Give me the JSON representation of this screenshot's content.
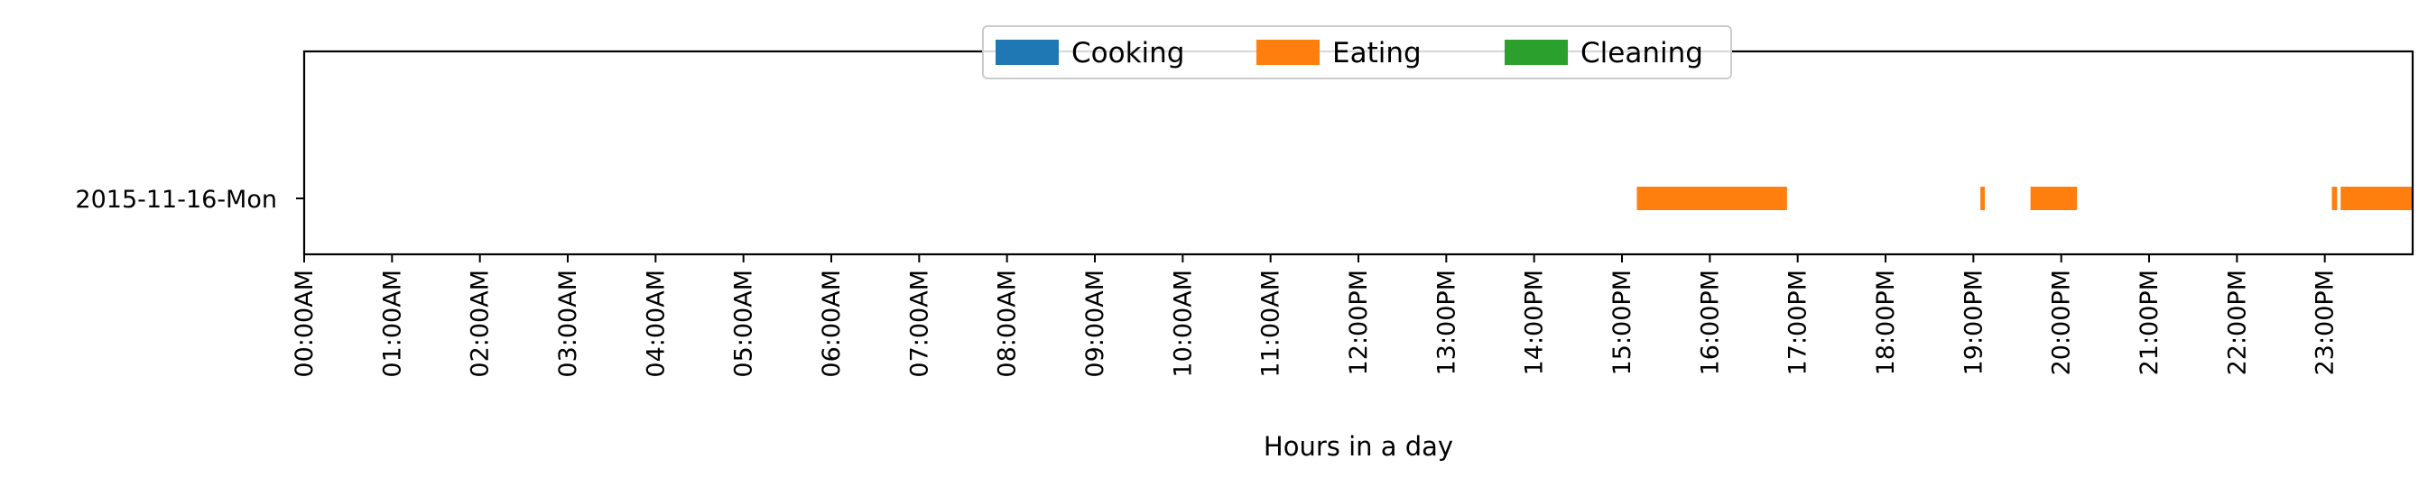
{
  "chart_data": {
    "type": "bar",
    "orientation": "horizontal-timeline",
    "title": "",
    "xlabel": "Hours in a day",
    "ylabel": "",
    "xlim": [
      0,
      24
    ],
    "grid": false,
    "legend_placement": "upper-center",
    "categories": [
      "2015-11-16-Mon"
    ],
    "x_ticks": [
      {
        "value": 0,
        "label": "00:00AM"
      },
      {
        "value": 1,
        "label": "01:00AM"
      },
      {
        "value": 2,
        "label": "02:00AM"
      },
      {
        "value": 3,
        "label": "03:00AM"
      },
      {
        "value": 4,
        "label": "04:00AM"
      },
      {
        "value": 5,
        "label": "05:00AM"
      },
      {
        "value": 6,
        "label": "06:00AM"
      },
      {
        "value": 7,
        "label": "07:00AM"
      },
      {
        "value": 8,
        "label": "08:00AM"
      },
      {
        "value": 9,
        "label": "09:00AM"
      },
      {
        "value": 10,
        "label": "10:00AM"
      },
      {
        "value": 11,
        "label": "11:00AM"
      },
      {
        "value": 12,
        "label": "12:00PM"
      },
      {
        "value": 13,
        "label": "13:00PM"
      },
      {
        "value": 14,
        "label": "14:00PM"
      },
      {
        "value": 15,
        "label": "15:00PM"
      },
      {
        "value": 16,
        "label": "16:00PM"
      },
      {
        "value": 17,
        "label": "17:00PM"
      },
      {
        "value": 18,
        "label": "18:00PM"
      },
      {
        "value": 19,
        "label": "19:00PM"
      },
      {
        "value": 20,
        "label": "20:00PM"
      },
      {
        "value": 21,
        "label": "21:00PM"
      },
      {
        "value": 22,
        "label": "22:00PM"
      },
      {
        "value": 23,
        "label": "23:00PM"
      }
    ],
    "series": [
      {
        "name": "Cooking",
        "color": "#1f77b4",
        "intervals": []
      },
      {
        "name": "Eating",
        "color": "#ff7f0e",
        "intervals": [
          {
            "category": "2015-11-16-Mon",
            "start": 15.17,
            "end": 16.88
          },
          {
            "category": "2015-11-16-Mon",
            "start": 19.08,
            "end": 19.13
          },
          {
            "category": "2015-11-16-Mon",
            "start": 19.65,
            "end": 20.18
          },
          {
            "category": "2015-11-16-Mon",
            "start": 23.08,
            "end": 23.14
          },
          {
            "category": "2015-11-16-Mon",
            "start": 23.18,
            "end": 24.0
          }
        ]
      },
      {
        "name": "Cleaning",
        "color": "#2ca02c",
        "intervals": []
      }
    ]
  }
}
